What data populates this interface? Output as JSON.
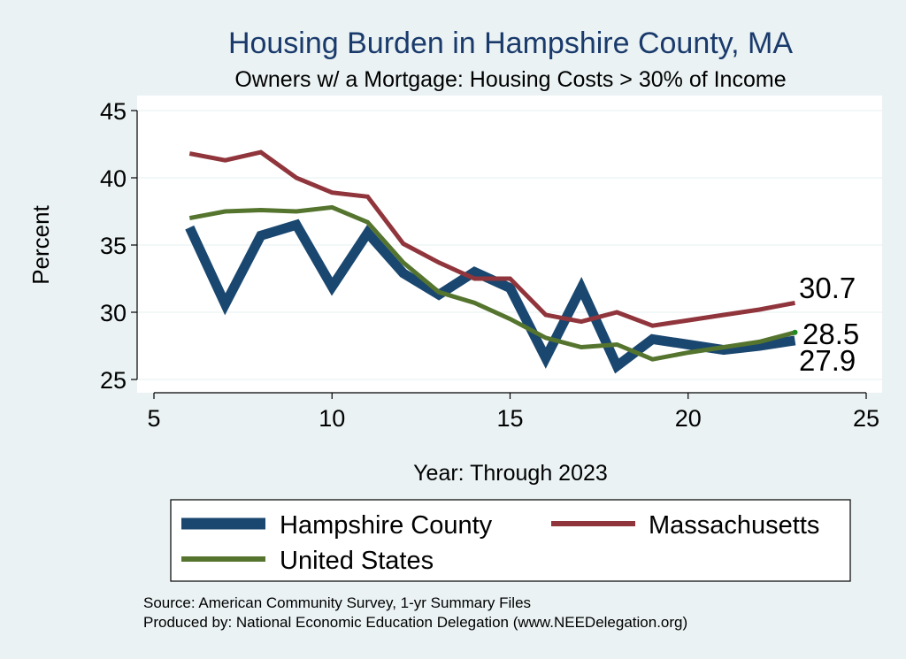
{
  "chart_data": {
    "type": "line",
    "title": "Housing Burden in Hampshire County, MA",
    "subtitle": "Owners w/ a Mortgage: Housing Costs > 30% of Income",
    "xlabel": "Year: Through 2023",
    "ylabel": "Percent",
    "xlim": [
      5,
      25
    ],
    "ylim": [
      25,
      45
    ],
    "xticks": [
      5,
      10,
      15,
      20,
      25
    ],
    "yticks": [
      25,
      30,
      35,
      40,
      45
    ],
    "series": [
      {
        "name": "Hampshire County",
        "color": "#1a476f",
        "x": [
          6,
          7,
          8,
          9,
          10,
          11,
          12,
          13,
          14,
          15,
          16,
          17,
          18,
          19,
          20,
          21,
          22,
          23
        ],
        "values": [
          36.3,
          30.6,
          35.7,
          36.5,
          31.9,
          35.9,
          32.9,
          31.3,
          33.0,
          31.8,
          26.6,
          31.8,
          26.0,
          28.0,
          27.6,
          27.2,
          27.5,
          27.9
        ],
        "end_label": "27.9"
      },
      {
        "name": "Massachusetts",
        "color": "#90353b",
        "x": [
          6,
          7,
          8,
          9,
          10,
          11,
          12,
          13,
          14,
          15,
          16,
          17,
          18,
          19,
          20,
          21,
          22,
          23
        ],
        "values": [
          41.8,
          41.3,
          41.9,
          40.0,
          38.9,
          38.6,
          35.1,
          33.7,
          32.5,
          32.5,
          29.8,
          29.3,
          30.0,
          29.0,
          29.4,
          29.8,
          30.2,
          30.7
        ],
        "end_label": "30.7"
      },
      {
        "name": "United States",
        "color": "#55752f",
        "x": [
          6,
          7,
          8,
          9,
          10,
          11,
          12,
          13,
          14,
          15,
          16,
          17,
          18,
          19,
          20,
          21,
          22,
          23
        ],
        "values": [
          37.0,
          37.5,
          37.6,
          37.5,
          37.8,
          36.7,
          33.7,
          31.5,
          30.7,
          29.5,
          28.1,
          27.4,
          27.6,
          26.5,
          27.0,
          27.4,
          27.8,
          28.5
        ],
        "end_label": "28.5"
      }
    ],
    "legend": {
      "position": "bottom",
      "entries": [
        "Hampshire County",
        "Massachusetts",
        "United States"
      ]
    }
  },
  "footer": {
    "source": "Source: American Community Survey, 1-yr Summary Files",
    "produced": "Produced by: National Economic Education Delegation (www.NEEDelegation.org)"
  }
}
